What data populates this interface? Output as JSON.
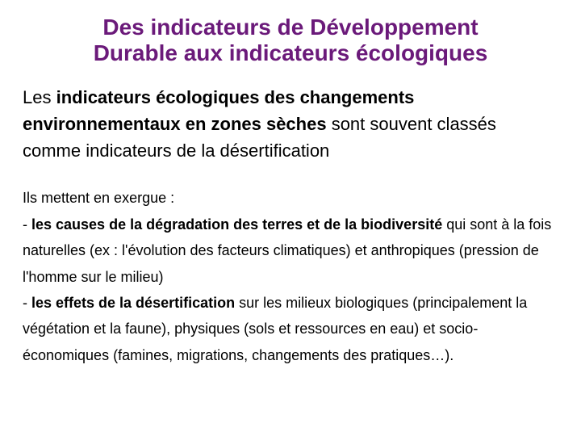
{
  "title_line1": "Des indicateurs de Développement",
  "title_line2": "Durable aux indicateurs écologiques",
  "p1_prefix": "Les ",
  "p1_bold": "indicateurs écologiques des changements environnementaux en zones sèches",
  "p1_rest": " sont souvent classés comme indicateurs de la désertification",
  "p2_intro": "Ils mettent en exergue :",
  "p2_c_prefix": "- ",
  "p2_c_bold": "les causes de la dégradation des terres et de la biodiversité",
  "p2_c_rest": " qui sont à la fois naturelles (ex : l'évolution des facteurs climatiques) et anthropiques (pression de l'homme sur le milieu)",
  "p2_e_prefix": "- ",
  "p2_e_bold": "les effets de la désertification",
  "p2_e_rest": " sur les milieux biologiques (principalement la végétation et la faune), physiques (sols et ressources en eau) et socio-économiques (famines, migrations, changements des pratiques…).",
  "colors": {
    "title": "#6b1a7a",
    "body": "#000000",
    "background": "#ffffff"
  },
  "fonts": {
    "family": "Verdana",
    "title_size_pt": 21,
    "para1_size_pt": 16,
    "para2_size_pt": 13
  }
}
